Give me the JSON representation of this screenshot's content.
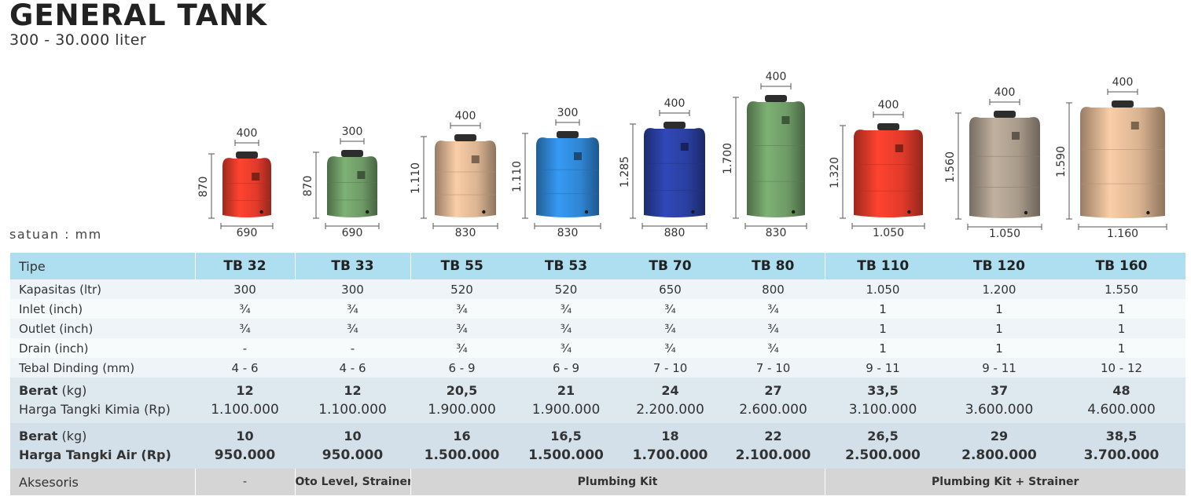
{
  "title": "GENERAL TANK",
  "subtitle": "300 - 30.000 liter",
  "unit_note": "satuan : mm",
  "tanks": [
    {
      "model": "TB 32",
      "top": "400",
      "height": "870",
      "width": "690",
      "color": "#e23a2a"
    },
    {
      "model": "TB 33",
      "top": "300",
      "height": "870",
      "width": "690",
      "color": "#6e9a66"
    },
    {
      "model": "TB 55",
      "top": "400",
      "height": "1.110",
      "width": "830",
      "color": "#d9b391"
    },
    {
      "model": "TB 53",
      "top": "300",
      "height": "1.110",
      "width": "830",
      "color": "#2f86d4"
    },
    {
      "model": "TB 70",
      "top": "400",
      "height": "1.285",
      "width": "880",
      "color": "#2a3fa0"
    },
    {
      "model": "TB 80",
      "top": "400",
      "height": "1.700",
      "width": "830",
      "color": "#6e9a66"
    },
    {
      "model": "TB 110",
      "top": "400",
      "height": "1.320",
      "width": "1.050",
      "color": "#e23a2a"
    },
    {
      "model": "TB 120",
      "top": "400",
      "height": "1.560",
      "width": "1.050",
      "color": "#a89a8a"
    },
    {
      "model": "TB 160",
      "top": "400",
      "height": "1.590",
      "width": "1.160",
      "color": "#d9b391"
    }
  ],
  "table": {
    "labels": {
      "tipe": "Tipe",
      "kapasitas": "Kapasitas (ltr)",
      "inlet": "Inlet (inch)",
      "outlet": "Outlet (inch)",
      "drain": "Drain (inch)",
      "tebal": "Tebal Dinding (mm)",
      "berat_bold": "Berat",
      "berat_unit": " (kg)",
      "harga_kimia": "Harga Tangki Kimia (Rp)",
      "harga_air": "Harga Tangki Air (Rp)",
      "aksesoris": "Aksesoris"
    },
    "kapasitas": [
      "300",
      "300",
      "520",
      "520",
      "650",
      "800",
      "1.050",
      "1.200",
      "1.550"
    ],
    "inlet": [
      "¾",
      "¾",
      "¾",
      "¾",
      "¾",
      "¾",
      "1",
      "1",
      "1"
    ],
    "outlet": [
      "¾",
      "¾",
      "¾",
      "¾",
      "¾",
      "¾",
      "1",
      "1",
      "1"
    ],
    "drain": [
      "-",
      "-",
      "¾",
      "¾",
      "¾",
      "¾",
      "1",
      "1",
      "1"
    ],
    "tebal": [
      "4 - 6",
      "4 - 6",
      "6 - 9",
      "6 - 9",
      "7 - 10",
      "7 - 10",
      "9 - 11",
      "9 - 11",
      "10 - 12"
    ],
    "berat_kimia": [
      "12",
      "12",
      "20,5",
      "21",
      "24",
      "27",
      "33,5",
      "37",
      "48"
    ],
    "harga_kimia": [
      "1.100.000",
      "1.100.000",
      "1.900.000",
      "1.900.000",
      "2.200.000",
      "2.600.000",
      "3.100.000",
      "3.600.000",
      "4.600.000"
    ],
    "berat_air": [
      "10",
      "10",
      "16",
      "16,5",
      "18",
      "22",
      "26,5",
      "29",
      "38,5"
    ],
    "harga_air": [
      "950.000",
      "950.000",
      "1.500.000",
      "1.500.000",
      "1.700.000",
      "2.100.000",
      "2.500.000",
      "2.800.000",
      "3.700.000"
    ],
    "aksesoris": [
      "-",
      "Oto Level, Strainer",
      "Plumbing Kit",
      "Plumbing Kit + Strainer"
    ]
  }
}
